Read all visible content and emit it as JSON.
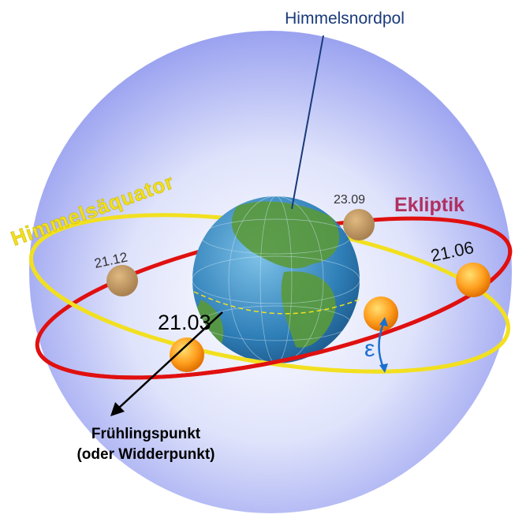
{
  "labels": {
    "celestial_north_pole": "Himmelsnordpol",
    "celestial_equator": "Himmelsäquator",
    "ecliptic": "Ekliptik",
    "date_sep": "23.09",
    "date_dec": "21.12",
    "date_jun": "21.06",
    "date_mar": "21.03",
    "obliquity": "ε",
    "vernal_point": "Frühlingspunkt",
    "vernal_point_alt": "(oder Widderpunkt)"
  }
}
